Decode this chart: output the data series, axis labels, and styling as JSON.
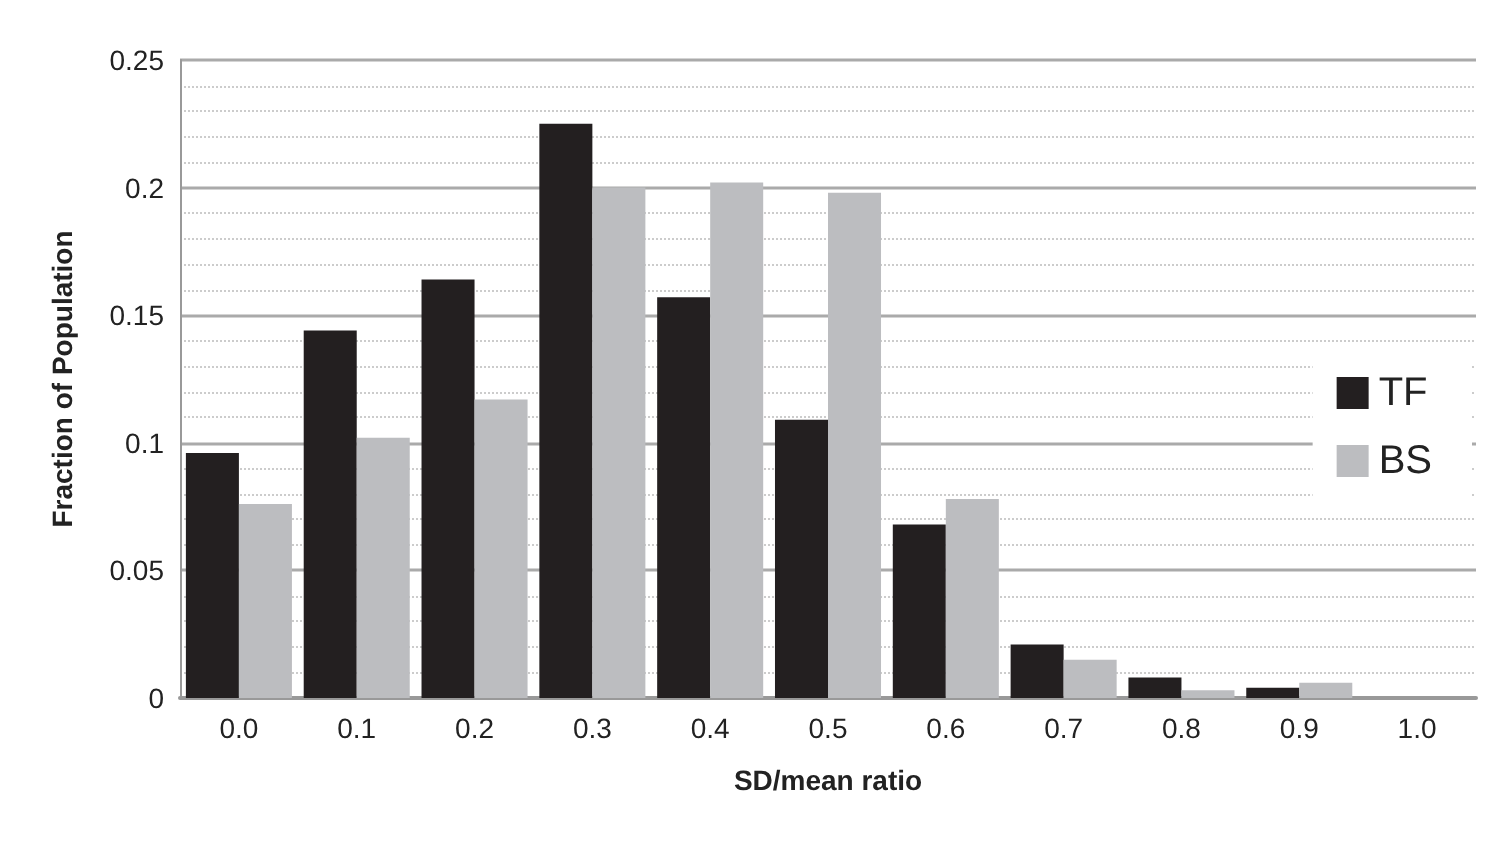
{
  "chart_data": {
    "type": "bar",
    "xlabel": "SD/mean ratio",
    "ylabel": "Fraction of Population",
    "categories": [
      "0.0",
      "0.1",
      "0.2",
      "0.3",
      "0.4",
      "0.5",
      "0.6",
      "0.7",
      "0.8",
      "0.9",
      "1.0"
    ],
    "series": [
      {
        "name": "TF",
        "color": "#231f20",
        "values": [
          0.096,
          0.144,
          0.164,
          0.225,
          0.157,
          0.109,
          0.068,
          0.021,
          0.008,
          0.004,
          0
        ]
      },
      {
        "name": "BS",
        "color": "#bcbdc0",
        "values": [
          0.076,
          0.102,
          0.117,
          0.2,
          0.202,
          0.198,
          0.078,
          0.015,
          0.003,
          0.006,
          0
        ]
      }
    ],
    "ylim": [
      0,
      0.25
    ],
    "yticks": [
      0,
      0.05,
      0.1,
      0.15,
      0.2,
      0.25
    ],
    "grid": "y",
    "legend": "right"
  }
}
